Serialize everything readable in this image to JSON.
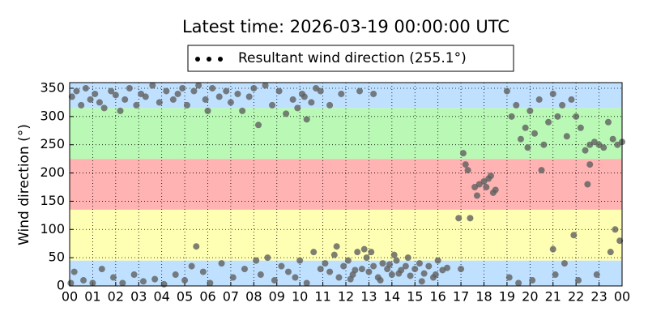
{
  "chart_data": {
    "type": "scatter",
    "title": "Latest time: 2026-03-19 00:00:00 UTC",
    "y_label": "Wind direction (°)",
    "xlim": [
      0,
      24
    ],
    "ylim": [
      0,
      360
    ],
    "xticks": [
      {
        "value": 0,
        "label": "00"
      },
      {
        "value": 1,
        "label": "01"
      },
      {
        "value": 2,
        "label": "02"
      },
      {
        "value": 3,
        "label": "03"
      },
      {
        "value": 4,
        "label": "04"
      },
      {
        "value": 5,
        "label": "05"
      },
      {
        "value": 6,
        "label": "06"
      },
      {
        "value": 7,
        "label": "07"
      },
      {
        "value": 8,
        "label": "08"
      },
      {
        "value": 9,
        "label": "09"
      },
      {
        "value": 10,
        "label": "10"
      },
      {
        "value": 11,
        "label": "11"
      },
      {
        "value": 12,
        "label": "12"
      },
      {
        "value": 13,
        "label": "13"
      },
      {
        "value": 14,
        "label": "14"
      },
      {
        "value": 15,
        "label": "15"
      },
      {
        "value": 16,
        "label": "16"
      },
      {
        "value": 17,
        "label": "17"
      },
      {
        "value": 18,
        "label": "18"
      },
      {
        "value": 19,
        "label": "19"
      },
      {
        "value": 20,
        "label": "20"
      },
      {
        "value": 21,
        "label": "21"
      },
      {
        "value": 22,
        "label": "22"
      },
      {
        "value": 23,
        "label": "23"
      },
      {
        "value": 24,
        "label": "00"
      }
    ],
    "yticks": [
      0,
      50,
      100,
      150,
      200,
      250,
      300,
      350
    ],
    "grid": true,
    "legend": "top",
    "bands": [
      {
        "from": 0,
        "to": 45,
        "color": "#bfe0ff"
      },
      {
        "from": 45,
        "to": 135,
        "color": "#ffffb3"
      },
      {
        "from": 135,
        "to": 225,
        "color": "#ffb3b3"
      },
      {
        "from": 225,
        "to": 315,
        "color": "#b9f9b5"
      },
      {
        "from": 315,
        "to": 360,
        "color": "#bfe0ff"
      }
    ],
    "series": [
      {
        "name": "Resultant wind direction (255.1°)",
        "color": "#5f5f5f",
        "x": [
          0.1,
          0.3,
          0.5,
          0.7,
          0.9,
          1.1,
          1.3,
          1.5,
          1.8,
          2.0,
          2.2,
          2.4,
          2.6,
          2.9,
          3.1,
          3.3,
          3.6,
          3.9,
          4.2,
          4.5,
          4.7,
          4.9,
          5.1,
          5.4,
          5.6,
          5.9,
          6.2,
          6.5,
          6.8,
          7.0,
          7.3,
          7.5,
          7.8,
          8.0,
          8.2,
          8.5,
          8.8,
          9.1,
          9.4,
          9.7,
          9.9,
          10.1,
          10.3,
          10.5,
          10.7,
          10.9,
          11.3,
          11.8,
          12.6,
          13.2,
          0.2,
          0.6,
          1.0,
          1.4,
          1.9,
          2.3,
          2.8,
          3.2,
          3.7,
          4.1,
          4.6,
          5.0,
          5.3,
          5.5,
          5.8,
          6.1,
          6.6,
          7.1,
          7.6,
          8.1,
          8.3,
          8.6,
          8.9,
          9.2,
          9.5,
          9.8,
          10.0,
          10.3,
          10.6,
          10.9,
          11.1,
          11.3,
          11.5,
          11.7,
          11.9,
          12.1,
          12.3,
          12.5,
          12.7,
          12.9,
          13.0,
          13.2,
          13.4,
          13.6,
          13.8,
          14.0,
          14.2,
          14.4,
          14.6,
          14.8,
          15.0,
          15.2,
          15.4,
          15.6,
          15.8,
          16.0,
          16.2,
          16.4,
          13.1,
          13.5,
          12.2,
          12.8,
          14.1,
          14.7,
          15.3,
          15.9,
          11.6,
          12.4,
          13.9,
          14.3,
          16.9,
          17.1,
          17.2,
          17.3,
          17.4,
          17.6,
          17.8,
          18.0,
          18.2,
          18.4,
          18.5,
          17.7,
          18.1,
          18.3,
          17.0,
          19.0,
          19.2,
          19.4,
          19.6,
          19.8,
          20.0,
          20.2,
          20.4,
          20.6,
          20.8,
          21.0,
          21.2,
          21.4,
          21.6,
          21.8,
          22.0,
          22.2,
          22.4,
          22.6,
          22.8,
          23.0,
          23.2,
          23.4,
          23.6,
          23.8,
          19.1,
          19.5,
          20.1,
          21.0,
          21.1,
          21.5,
          22.1,
          22.5,
          22.6,
          23.5,
          23.9,
          24.0,
          23.7,
          22.9,
          21.9,
          20.5,
          19.9,
          0.05,
          6.0,
          10.2
        ],
        "values": [
          335,
          345,
          320,
          350,
          330,
          340,
          325,
          315,
          345,
          338,
          310,
          330,
          350,
          320,
          340,
          335,
          355,
          325,
          345,
          330,
          340,
          350,
          320,
          345,
          355,
          330,
          350,
          335,
          345,
          325,
          340,
          310,
          335,
          350,
          285,
          355,
          320,
          345,
          305,
          330,
          315,
          340,
          295,
          325,
          350,
          345,
          320,
          340,
          345,
          340,
          25,
          10,
          5,
          30,
          15,
          5,
          20,
          8,
          12,
          3,
          20,
          10,
          35,
          70,
          25,
          5,
          40,
          15,
          30,
          45,
          20,
          50,
          10,
          35,
          25,
          15,
          45,
          5,
          60,
          30,
          40,
          25,
          55,
          15,
          35,
          45,
          20,
          60,
          30,
          50,
          25,
          35,
          15,
          40,
          30,
          20,
          45,
          28,
          35,
          18,
          30,
          40,
          22,
          35,
          15,
          45,
          28,
          32,
          60,
          10,
          12,
          65,
          55,
          50,
          8,
          20,
          70,
          28,
          38,
          22,
          120,
          235,
          215,
          205,
          120,
          175,
          180,
          185,
          190,
          165,
          170,
          160,
          175,
          195,
          30,
          345,
          300,
          320,
          260,
          280,
          310,
          270,
          330,
          250,
          290,
          340,
          300,
          320,
          265,
          330,
          300,
          280,
          240,
          250,
          255,
          250,
          245,
          290,
          260,
          250,
          15,
          5,
          10,
          65,
          20,
          40,
          10,
          180,
          215,
          60,
          80,
          255,
          100,
          20,
          90,
          205,
          245,
          5,
          310,
          335
        ]
      }
    ]
  }
}
